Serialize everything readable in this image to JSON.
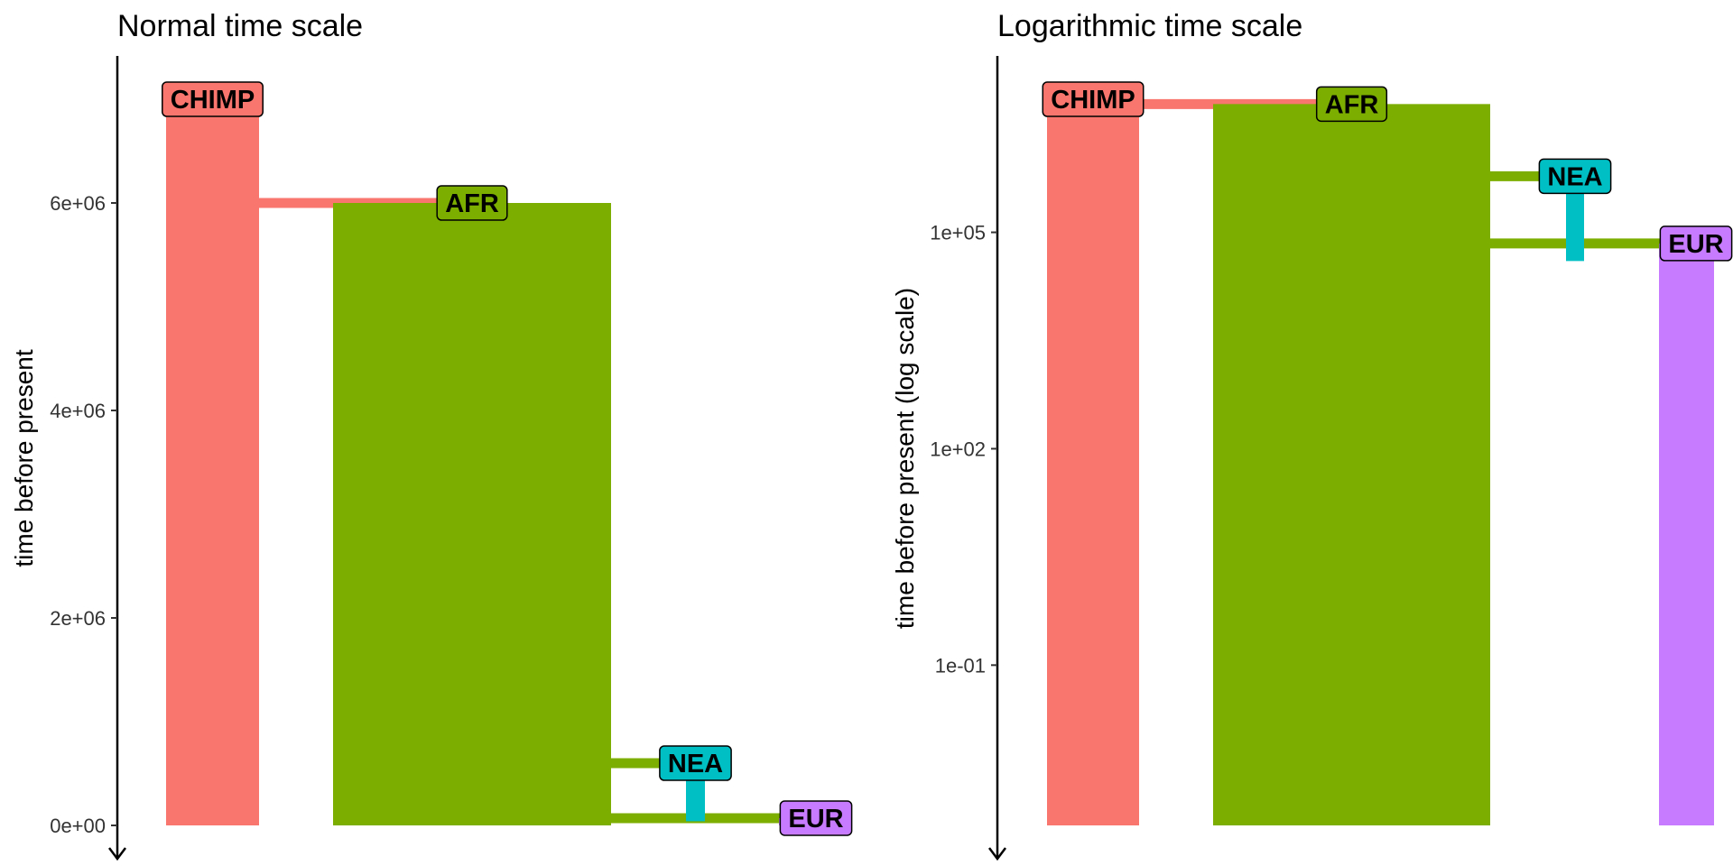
{
  "chart_data": [
    {
      "type": "bar",
      "title": "Normal time scale",
      "xlabel": "",
      "ylabel": "time before present",
      "scale": "linear",
      "ylim": [
        0,
        7000000
      ],
      "axis_direction": "time increases upward, arrow points toward present",
      "yticks": [
        {
          "value": 0,
          "label": "0e+00"
        },
        {
          "value": 2000000,
          "label": "2e+06"
        },
        {
          "value": 4000000,
          "label": "4e+06"
        },
        {
          "value": 6000000,
          "label": "6e+06"
        }
      ],
      "populations": [
        {
          "name": "CHIMP",
          "color": "#F8766D",
          "start": 7000000,
          "end": 0,
          "width": "narrow"
        },
        {
          "name": "AFR",
          "color": "#7CAE00",
          "start": 6000000,
          "end": 0,
          "width": "wide",
          "parent": "CHIMP"
        },
        {
          "name": "NEA",
          "color": "#00BFC4",
          "start": 600000,
          "end": 40000,
          "width": "thin",
          "parent": "AFR"
        },
        {
          "name": "EUR",
          "color": "#C77CFF",
          "start": 70000,
          "end": 0,
          "width": "narrow",
          "parent": "AFR"
        }
      ],
      "grid": false,
      "legend": "none"
    },
    {
      "type": "bar",
      "title": "Logarithmic time scale",
      "xlabel": "",
      "ylabel": "time before present (log scale)",
      "scale": "log",
      "ylim": [
        0.0006,
        7000000
      ],
      "axis_direction": "time increases upward, arrow points toward present",
      "yticks": [
        {
          "value": 0.1,
          "label": "1e-01"
        },
        {
          "value": 100,
          "label": "1e+02"
        },
        {
          "value": 100000,
          "label": "1e+05"
        }
      ],
      "populations": [
        {
          "name": "CHIMP",
          "color": "#F8766D",
          "start": 7000000,
          "end": 0,
          "width": "narrow"
        },
        {
          "name": "AFR",
          "color": "#7CAE00",
          "start": 6000000,
          "end": 0,
          "width": "wide",
          "parent": "CHIMP"
        },
        {
          "name": "NEA",
          "color": "#00BFC4",
          "start": 600000,
          "end": 40000,
          "width": "thin",
          "parent": "AFR"
        },
        {
          "name": "EUR",
          "color": "#C77CFF",
          "start": 70000,
          "end": 0,
          "width": "narrow",
          "parent": "AFR"
        }
      ],
      "grid": false,
      "legend": "none"
    }
  ]
}
